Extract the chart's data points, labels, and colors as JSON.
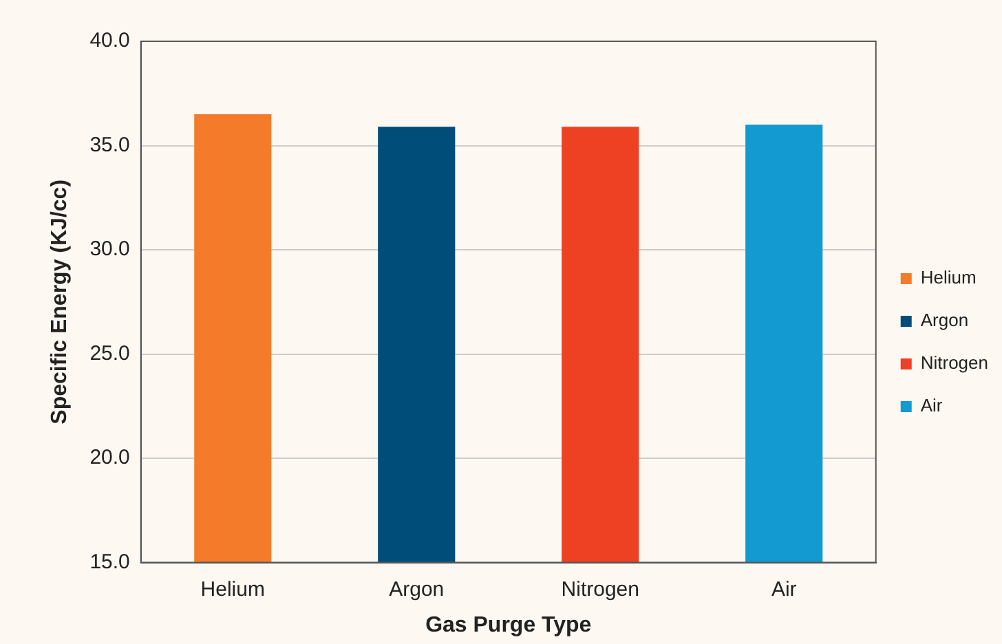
{
  "chart_data": {
    "type": "bar",
    "xlabel": "Gas Purge Type",
    "ylabel": "Specific Energy (KJ/cc)",
    "categories": [
      "Helium",
      "Argon",
      "Nitrogen",
      "Air"
    ],
    "series": [
      {
        "name": "Helium",
        "color": "#f47b2a",
        "values": [
          36.5,
          null,
          null,
          null
        ]
      },
      {
        "name": "Argon",
        "color": "#004d79",
        "values": [
          null,
          35.9,
          null,
          null
        ]
      },
      {
        "name": "Nitrogen",
        "color": "#ee4023",
        "values": [
          null,
          null,
          35.9,
          null
        ]
      },
      {
        "name": "Air",
        "color": "#139ad0",
        "values": [
          null,
          null,
          null,
          36.0
        ]
      }
    ],
    "ylim": [
      15,
      40
    ],
    "yticks": [
      {
        "value": 15,
        "label": "15.0"
      },
      {
        "value": 20,
        "label": "20.0"
      },
      {
        "value": 25,
        "label": "25.0"
      },
      {
        "value": 30,
        "label": "30.0"
      },
      {
        "value": 35,
        "label": "35.0"
      },
      {
        "value": 40,
        "label": "40.0"
      }
    ],
    "grid": "y",
    "legend": "right"
  }
}
